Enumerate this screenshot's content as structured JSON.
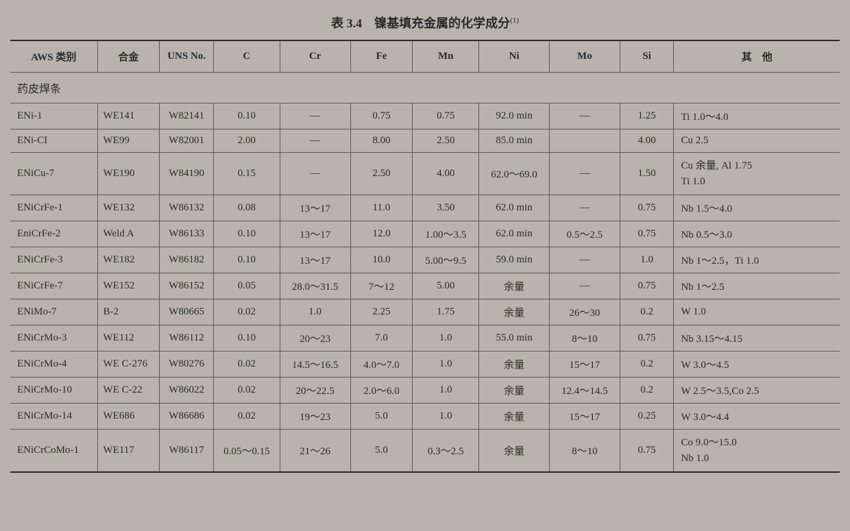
{
  "title": "表 3.4　镍基填充金属的化学成分",
  "title_sup": "(1)",
  "headers": {
    "aws": "AWS 类别",
    "alloy": "合金",
    "uns": "UNS No.",
    "c": "C",
    "cr": "Cr",
    "fe": "Fe",
    "mn": "Mn",
    "ni": "Ni",
    "mo": "Mo",
    "si": "Si",
    "other": "其　他"
  },
  "section_label": "药皮焊条",
  "rows": [
    {
      "aws": "ENi-1",
      "alloy": "WE141",
      "uns": "W82141",
      "c": "0.10",
      "cr": "—",
      "fe": "0.75",
      "mn": "0.75",
      "ni": "92.0 min",
      "mo": "—",
      "si": "1.25",
      "other": "Ti 1.0～4.0"
    },
    {
      "aws": "ENi-CI",
      "alloy": "WE99",
      "uns": "W82001",
      "c": "2.00",
      "cr": "—",
      "fe": "8.00",
      "mn": "2.50",
      "ni": "85.0 min",
      "mo": "",
      "si": "4.00",
      "other": "Cu 2.5"
    },
    {
      "aws": "ENiCu-7",
      "alloy": "WE190",
      "uns": "W84190",
      "c": "0.15",
      "cr": "—",
      "fe": "2.50",
      "mn": "4.00",
      "ni": "62.0～69.0",
      "mo": "—",
      "si": "1.50",
      "other": "Cu 余量, Al 1.75\nTi 1.0"
    },
    {
      "aws": "ENiCrFe-1",
      "alloy": "WE132",
      "uns": "W86132",
      "c": "0.08",
      "cr": "13～17",
      "fe": "11.0",
      "mn": "3.50",
      "ni": "62.0 min",
      "mo": "—",
      "si": "0.75",
      "other": "Nb 1.5～4.0"
    },
    {
      "aws": "EniCrFe-2",
      "alloy": "Weld A",
      "uns": "W86133",
      "c": "0.10",
      "cr": "13～17",
      "fe": "12.0",
      "mn": "1.00～3.5",
      "ni": "62.0 min",
      "mo": "0.5～2.5",
      "si": "0.75",
      "other": "Nb 0.5～3.0"
    },
    {
      "aws": "ENiCrFe-3",
      "alloy": "WE182",
      "uns": "W86182",
      "c": "0.10",
      "cr": "13～17",
      "fe": "10.0",
      "mn": "5.00～9.5",
      "ni": "59.0 min",
      "mo": "—",
      "si": "1.0",
      "other": "Nb 1～2.5，Ti 1.0"
    },
    {
      "aws": "ENiCrFe-7",
      "alloy": "WE152",
      "uns": "W86152",
      "c": "0.05",
      "cr": "28.0～31.5",
      "fe": "7～12",
      "mn": "5.00",
      "ni": "余量",
      "mo": "—",
      "si": "0.75",
      "other": "Nb 1～2.5"
    },
    {
      "aws": "ENiMo-7",
      "alloy": "B-2",
      "uns": "W80665",
      "c": "0.02",
      "cr": "1.0",
      "fe": "2.25",
      "mn": "1.75",
      "ni": "余量",
      "mo": "26～30",
      "si": "0.2",
      "other": "W 1.0"
    },
    {
      "aws": "ENiCrMo-3",
      "alloy": "WE112",
      "uns": "W86112",
      "c": "0.10",
      "cr": "20～23",
      "fe": "7.0",
      "mn": "1.0",
      "ni": "55.0 min",
      "mo": "8～10",
      "si": "0.75",
      "other": "Nb 3.15～4.15"
    },
    {
      "aws": "ENiCrMo-4",
      "alloy": "WE C-276",
      "uns": "W80276",
      "c": "0.02",
      "cr": "14.5～16.5",
      "fe": "4.0～7.0",
      "mn": "1.0",
      "ni": "余量",
      "mo": "15～17",
      "si": "0.2",
      "other": "W 3.0～4.5"
    },
    {
      "aws": "ENiCrMo-10",
      "alloy": "WE C-22",
      "uns": "W86022",
      "c": "0.02",
      "cr": "20～22.5",
      "fe": "2.0～6.0",
      "mn": "1.0",
      "ni": "余量",
      "mo": "12.4～14.5",
      "si": "0.2",
      "other": "W 2.5～3.5,Co 2.5"
    },
    {
      "aws": "ENiCrMo-14",
      "alloy": "WE686",
      "uns": "W86686",
      "c": "0.02",
      "cr": "19～23",
      "fe": "5.0",
      "mn": "1.0",
      "ni": "余量",
      "mo": "15～17",
      "si": "0.25",
      "other": "W 3.0～4.4"
    },
    {
      "aws": "ENiCrCoMo-1",
      "alloy": "WE117",
      "uns": "W86117",
      "c": "0.05～0.15",
      "cr": "21～26",
      "fe": "5.0",
      "mn": "0.3～2.5",
      "ni": "余量",
      "mo": "8～10",
      "si": "0.75",
      "other": "Co 9.0～15.0\nNb 1.0"
    }
  ],
  "styling": {
    "background_color": "#b8b4ad",
    "text_color": "#2a2a2a",
    "border_color": "#5a5852",
    "thick_border_color": "#2a2a2a",
    "header_fontsize": 15,
    "body_fontsize": 15,
    "title_fontsize": 18,
    "font_family": "SimSun, Times New Roman, serif"
  }
}
